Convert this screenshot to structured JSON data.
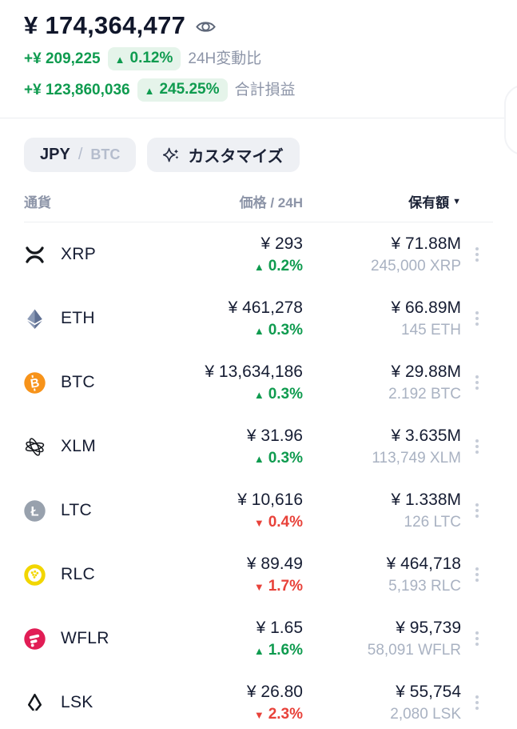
{
  "summary": {
    "total_balance": "¥ 174,364,477",
    "change_24h": {
      "amount": "+¥ 209,225",
      "percent": "0.12%",
      "direction": "up",
      "label": "24H変動比"
    },
    "total_pl": {
      "amount": "+¥ 123,860,036",
      "percent": "245.25%",
      "direction": "up",
      "label": "合計損益"
    }
  },
  "controls": {
    "currency_primary": "JPY",
    "currency_separator": "/",
    "currency_secondary": "BTC",
    "customize_label": "カスタマイズ",
    "customize_icon": "sparkle-icon",
    "visibility_icon": "eye-icon"
  },
  "table": {
    "columns": {
      "currency": "通貨",
      "price": "価格 / 24H",
      "holdings": "保有額"
    },
    "sort": {
      "column": "保有額",
      "direction": "desc"
    },
    "rows": [
      {
        "symbol": "XRP",
        "icon": "xrp-logo",
        "price": "¥ 293",
        "change": "0.2%",
        "dir": "up",
        "value": "¥ 71.88M",
        "amount": "245,000 XRP"
      },
      {
        "symbol": "ETH",
        "icon": "eth-logo",
        "price": "¥ 461,278",
        "change": "0.3%",
        "dir": "up",
        "value": "¥ 66.89M",
        "amount": "145 ETH"
      },
      {
        "symbol": "BTC",
        "icon": "btc-logo",
        "price": "¥ 13,634,186",
        "change": "0.3%",
        "dir": "up",
        "value": "¥ 29.88M",
        "amount": "2.192 BTC"
      },
      {
        "symbol": "XLM",
        "icon": "xlm-logo",
        "price": "¥ 31.96",
        "change": "0.3%",
        "dir": "up",
        "value": "¥ 3.635M",
        "amount": "113,749 XLM"
      },
      {
        "symbol": "LTC",
        "icon": "ltc-logo",
        "price": "¥ 10,616",
        "change": "0.4%",
        "dir": "down",
        "value": "¥ 1.338M",
        "amount": "126 LTC"
      },
      {
        "symbol": "RLC",
        "icon": "rlc-logo",
        "price": "¥ 89.49",
        "change": "1.7%",
        "dir": "down",
        "value": "¥ 464,718",
        "amount": "5,193 RLC"
      },
      {
        "symbol": "WFLR",
        "icon": "wflr-logo",
        "price": "¥ 1.65",
        "change": "1.6%",
        "dir": "up",
        "value": "¥ 95,739",
        "amount": "58,091 WFLR"
      },
      {
        "symbol": "LSK",
        "icon": "lsk-logo",
        "price": "¥ 26.80",
        "change": "2.3%",
        "dir": "down",
        "value": "¥ 55,754",
        "amount": "2,080 LSK"
      }
    ]
  },
  "colors": {
    "text_dark": "#161d33",
    "text_gray": "#8d95a8",
    "text_subtle": "#a9b2c2",
    "green": "#0f9b4f",
    "green_badge_bg": "#e5f4ea",
    "red": "#e8423a",
    "pill_bg": "#eef0f4",
    "btc_orange": "#f7931a",
    "wflr_pink": "#e11d55",
    "rlc_yellow": "#f2d600",
    "ltc_gray": "#98a1ad",
    "eth_slate": "#7585a3"
  }
}
